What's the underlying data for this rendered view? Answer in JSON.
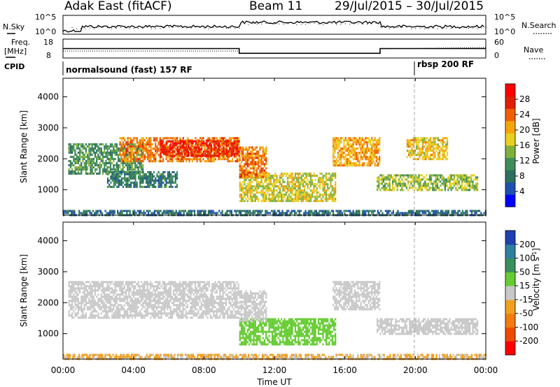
{
  "header": {
    "station": "Adak East (fitACF)",
    "beam": "Beam 11",
    "daterange": "29/Jul/2015 – 30/Jul/2015"
  },
  "top_panels": {
    "nsky_label": "N.Sky",
    "nsearch_label": "N.Search",
    "noise_ticks_left": [
      "10^5",
      "10^0"
    ],
    "noise_ticks_right": [
      "10^5",
      "10^0"
    ],
    "freq_label_1": "Freq.",
    "freq_label_2": "[MHz]",
    "freq_ticks": [
      "18",
      "8"
    ],
    "nave_ticks": [
      "60",
      "0"
    ],
    "nave_label": "Nave",
    "cpid_label": "CPID",
    "cpid_segments": [
      "normalsound (fast) 157 RF",
      "rbsp 200 RF"
    ]
  },
  "power_panel": {
    "ylabel": "Slant Range [km]",
    "yticks": [
      "4000",
      "3000",
      "2000",
      "1000"
    ],
    "colorbar_label": "Power [dB]",
    "colorbar_ticks": [
      "28",
      "24",
      "20",
      "16",
      "12",
      "8",
      "4"
    ],
    "colorbar_colors": [
      "#0000ff",
      "#1f4fb0",
      "#2e6f5e",
      "#3d8e5a",
      "#7fb03a",
      "#e8d020",
      "#f7a30a",
      "#f06000",
      "#e02000",
      "#ff0000"
    ]
  },
  "velocity_panel": {
    "ylabel": "Slant Range [km]",
    "yticks": [
      "4000",
      "3000",
      "2000",
      "1000"
    ],
    "colorbar_label_main": "Velocity [m s",
    "colorbar_label_sup": "-1",
    "colorbar_label_end": "]",
    "colorbar_ticks": [
      "200",
      "100",
      "50",
      "15",
      "-15",
      "-50",
      "-100",
      "-200"
    ],
    "colorbar_colors": [
      "#2040b0",
      "#2f7fa0",
      "#3a8f5f",
      "#66cc33",
      "#c8c8c8",
      "#f0a020",
      "#f57a10",
      "#f04a00",
      "#ff0000"
    ]
  },
  "xaxis": {
    "ticks": [
      "00:00",
      "04:00",
      "08:00",
      "12:00",
      "16:00",
      "20:00",
      "00:00"
    ],
    "label": "Time UT"
  },
  "chart_data": {
    "type": "heatmap",
    "title": "Adak East (fitACF)  Beam 11  29/Jul/2015 – 30/Jul/2015",
    "xlabel": "Time UT",
    "ylabel": "Slant Range [km]",
    "x_range_hours": [
      0,
      24
    ],
    "ylim": [
      180,
      4600
    ],
    "frequency_mhz": [
      {
        "start_h": 0,
        "end_h": 10,
        "value": 13
      },
      {
        "start_h": 10,
        "end_h": 18,
        "value": 10.5
      },
      {
        "start_h": 18,
        "end_h": 24,
        "value": 13
      }
    ],
    "cpid": [
      {
        "start_h": 0,
        "end_h": 20,
        "name": "normalsound (fast) 157 RF"
      },
      {
        "start_h": 20,
        "end_h": 24,
        "name": "rbsp 200 RF"
      }
    ],
    "power_blobs": [
      {
        "t0": 0.3,
        "t1": 4.5,
        "r0": 1500,
        "r1": 2500,
        "p": 10
      },
      {
        "t0": 3.2,
        "t1": 10.0,
        "r0": 1950,
        "r1": 2700,
        "p": 22
      },
      {
        "t0": 5.5,
        "t1": 10.0,
        "r0": 2100,
        "r1": 2600,
        "p": 27
      },
      {
        "t0": 2.5,
        "t1": 6.5,
        "r0": 1100,
        "r1": 1600,
        "p": 8
      },
      {
        "t0": 10.0,
        "t1": 15.5,
        "r0": 650,
        "r1": 1550,
        "p": 16
      },
      {
        "t0": 10.0,
        "t1": 11.5,
        "r0": 1400,
        "r1": 2400,
        "p": 22
      },
      {
        "t0": 15.3,
        "t1": 18.0,
        "r0": 1800,
        "r1": 2700,
        "p": 20
      },
      {
        "t0": 17.8,
        "t1": 23.5,
        "r0": 1000,
        "r1": 1500,
        "p": 14
      },
      {
        "t0": 19.5,
        "t1": 21.8,
        "r0": 2000,
        "r1": 2700,
        "p": 18
      },
      {
        "t0": 0.0,
        "t1": 24.0,
        "r0": 200,
        "r1": 350,
        "p": 6
      }
    ],
    "velocity_blobs": [
      {
        "t0": 0.3,
        "t1": 10.0,
        "r0": 1500,
        "r1": 2700,
        "v": 0
      },
      {
        "t0": 10.0,
        "t1": 15.5,
        "r0": 650,
        "r1": 1500,
        "v": 40
      },
      {
        "t0": 10.0,
        "t1": 11.5,
        "r0": 1400,
        "r1": 2400,
        "v": 0
      },
      {
        "t0": 15.3,
        "t1": 18.0,
        "r0": 1800,
        "r1": 2700,
        "v": 0
      },
      {
        "t0": 17.8,
        "t1": 23.5,
        "r0": 1000,
        "r1": 1500,
        "v": 0
      },
      {
        "t0": 0.0,
        "t1": 24.0,
        "r0": 200,
        "r1": 350,
        "v": -30
      }
    ]
  }
}
